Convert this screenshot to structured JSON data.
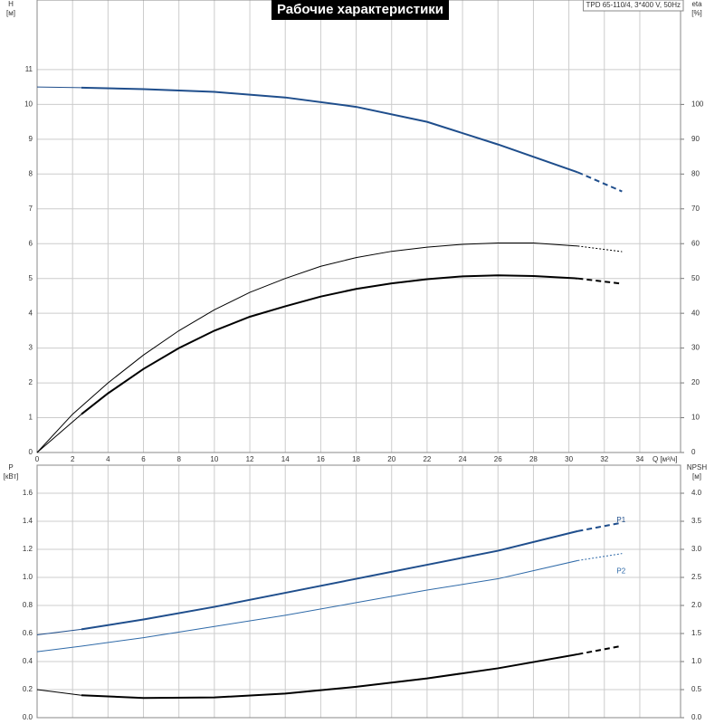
{
  "chart_data": [
    {
      "type": "line",
      "title": "Рабочие характеристики",
      "subtitle": "TPD 65-110/4, 3*400 V, 50Hz",
      "ylabel": "H",
      "yunit": "[м]",
      "y2label": "eta",
      "y2unit": "[%]",
      "xlabel": "Q [м³/ч]",
      "xlim": [
        0,
        36.3
      ],
      "xticks": [
        0,
        2,
        4,
        6,
        8,
        10,
        12,
        14,
        16,
        18,
        20,
        22,
        24,
        26,
        28,
        30,
        32,
        34
      ],
      "ylim": [
        0,
        13
      ],
      "yticks": [
        0,
        1,
        2,
        3,
        4,
        5,
        6,
        7,
        8,
        9,
        10,
        11
      ],
      "y2lim": [
        0,
        130
      ],
      "y2ticks": [
        0,
        10,
        20,
        30,
        40,
        50,
        60,
        70,
        80,
        90,
        100
      ],
      "grid": true,
      "series": [
        {
          "color": "#1f4e8c",
          "width": 1,
          "style": "solid",
          "x": [
            0,
            2.5
          ],
          "values": [
            10.5,
            10.48
          ]
        },
        {
          "color": "#1f4e8c",
          "width": 2,
          "style": "solid",
          "x": [
            2.5,
            6,
            10,
            14,
            18,
            22,
            26,
            30.5
          ],
          "values": [
            10.48,
            10.44,
            10.36,
            10.2,
            9.93,
            9.5,
            8.85,
            8.05
          ]
        },
        {
          "color": "#1f4e8c",
          "width": 2,
          "style": "dashed",
          "x": [
            30.5,
            33
          ],
          "values": [
            8.05,
            7.5
          ]
        },
        {
          "color": "#000000",
          "width": 1,
          "style": "solid",
          "axis": "y2",
          "x": [
            0,
            2.5
          ],
          "values": [
            0,
            11
          ]
        },
        {
          "color": "#000000",
          "width": 2,
          "style": "solid",
          "axis": "y2",
          "x": [
            2.5,
            4,
            6,
            8,
            10,
            12,
            14,
            16,
            18,
            20,
            22,
            24,
            26,
            28,
            30.5
          ],
          "values": [
            11,
            17,
            24,
            30,
            35,
            39,
            42,
            44.8,
            47,
            48.6,
            49.8,
            50.6,
            50.9,
            50.7,
            50
          ]
        },
        {
          "color": "#000000",
          "width": 2,
          "style": "dashed",
          "axis": "y2",
          "x": [
            30.5,
            33
          ],
          "values": [
            50,
            48.5
          ]
        },
        {
          "color": "#000000",
          "width": 1,
          "style": "solid",
          "axis": "y2",
          "x": [
            0,
            2,
            4,
            6,
            8,
            10,
            12,
            14,
            16,
            18,
            20,
            22,
            24,
            26,
            28,
            30.5
          ],
          "values": [
            0,
            11,
            20,
            28,
            35,
            41,
            46,
            50,
            53.5,
            56,
            57.8,
            59,
            59.8,
            60.2,
            60.2,
            59.3
          ]
        },
        {
          "color": "#000000",
          "width": 1,
          "style": "dotted",
          "axis": "y2",
          "x": [
            30.5,
            33
          ],
          "values": [
            59.3,
            57.7
          ]
        }
      ]
    },
    {
      "type": "line",
      "ylabel": "P",
      "yunit": "[кВт]",
      "y2label": "NPSH",
      "y2unit": "[м]",
      "xlim": [
        0,
        36.3
      ],
      "ylim": [
        0,
        1.8
      ],
      "yticks": [
        {
          "value": 0,
          "label": "0.0"
        },
        0.2,
        0.4,
        0.6,
        0.8,
        {
          "value": 1,
          "label": "1.0"
        },
        1.2,
        1.4,
        1.6
      ],
      "y2lim": [
        0,
        4.5
      ],
      "y2ticks": [
        {
          "value": 0,
          "label": "0.0"
        },
        0.5,
        {
          "value": 1,
          "label": "1.0"
        },
        1.5,
        {
          "value": 2,
          "label": "2.0"
        },
        2.5,
        {
          "value": 3,
          "label": "3.0"
        },
        3.5,
        {
          "value": 4,
          "label": "4.0"
        }
      ],
      "grid": true,
      "series": [
        {
          "color": "#1f4e8c",
          "width": 1,
          "style": "solid",
          "x": [
            0,
            2.5
          ],
          "values": [
            0.59,
            0.63
          ]
        },
        {
          "name": "P1",
          "color": "#1f4e8c",
          "width": 2,
          "style": "solid",
          "x": [
            2.5,
            6,
            10,
            14,
            18,
            22,
            26,
            30.5
          ],
          "values": [
            0.63,
            0.7,
            0.79,
            0.89,
            0.99,
            1.09,
            1.19,
            1.33
          ]
        },
        {
          "color": "#1f4e8c",
          "width": 2,
          "style": "dashed",
          "x": [
            30.5,
            33
          ],
          "values": [
            1.33,
            1.39
          ]
        },
        {
          "name": "P2",
          "color": "#2f6aa8",
          "width": 1,
          "style": "solid",
          "x": [
            0,
            2.5,
            6,
            10,
            14,
            18,
            22,
            26,
            30.5
          ],
          "values": [
            0.47,
            0.51,
            0.57,
            0.65,
            0.73,
            0.82,
            0.91,
            0.99,
            1.12
          ]
        },
        {
          "color": "#2f6aa8",
          "width": 1,
          "style": "dotted",
          "x": [
            30.5,
            33
          ],
          "values": [
            1.12,
            1.17
          ]
        },
        {
          "color": "#000000",
          "width": 1,
          "style": "solid",
          "axis": "y2",
          "x": [
            0,
            2.5
          ],
          "values": [
            0.5,
            0.4
          ]
        },
        {
          "color": "#000000",
          "width": 2,
          "style": "solid",
          "axis": "y2",
          "x": [
            2.5,
            6,
            10,
            14,
            18,
            22,
            26,
            30.5
          ],
          "values": [
            0.4,
            0.35,
            0.36,
            0.43,
            0.55,
            0.7,
            0.88,
            1.13
          ]
        },
        {
          "color": "#000000",
          "width": 2,
          "style": "dashed",
          "axis": "y2",
          "x": [
            30.5,
            33
          ],
          "values": [
            1.13,
            1.28
          ]
        }
      ]
    }
  ]
}
